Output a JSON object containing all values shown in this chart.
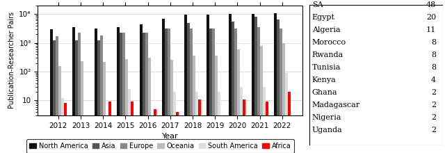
{
  "years": [
    2012,
    2013,
    2014,
    2015,
    2016,
    2017,
    2018,
    2019,
    2020,
    2021,
    2022
  ],
  "north_america": [
    3000,
    3500,
    3200,
    3500,
    4500,
    7000,
    9500,
    9500,
    10000,
    10000,
    10500
  ],
  "asia": [
    1200,
    1200,
    1200,
    2200,
    2200,
    3200,
    5000,
    3200,
    5500,
    8000,
    6500
  ],
  "europe": [
    1700,
    2200,
    1800,
    2300,
    2200,
    3200,
    3200,
    3200,
    3200,
    3500,
    3200
  ],
  "oceania": [
    160,
    230,
    220,
    270,
    300,
    260,
    360,
    350,
    600,
    800,
    980
  ],
  "south_america": [
    12,
    1.5,
    1.5,
    25,
    1.5,
    20,
    20,
    20,
    30,
    30,
    90
  ],
  "africa": [
    8,
    1.5,
    9,
    9,
    5,
    4,
    11,
    3,
    11,
    9,
    20
  ],
  "colors": {
    "north_america": "#111111",
    "asia": "#555555",
    "europe": "#888888",
    "oceania": "#bbbbbb",
    "south_america": "#dddddd",
    "africa": "#ff0000"
  },
  "legend_labels": [
    "North America",
    "Asia",
    "Europe",
    "Oceania",
    "South America",
    "Africa"
  ],
  "ylabel": "Publication-Researcher Pairs",
  "xlabel": "Year",
  "ylim_min": 3,
  "ylim_max": 20000,
  "yticks": [
    10,
    100,
    1000,
    10000
  ],
  "ytick_labels": [
    "10",
    "10²",
    "10³",
    "10⁴"
  ],
  "table_countries": [
    "SA",
    "Egypt",
    "Algeria",
    "Morocco",
    "Rwanda",
    "Tunisia",
    "Kenya",
    "Ghana",
    "Madagascar",
    "Nigeria",
    "Uganda"
  ],
  "table_values": [
    48,
    20,
    11,
    8,
    8,
    8,
    4,
    2,
    2,
    2,
    2
  ]
}
